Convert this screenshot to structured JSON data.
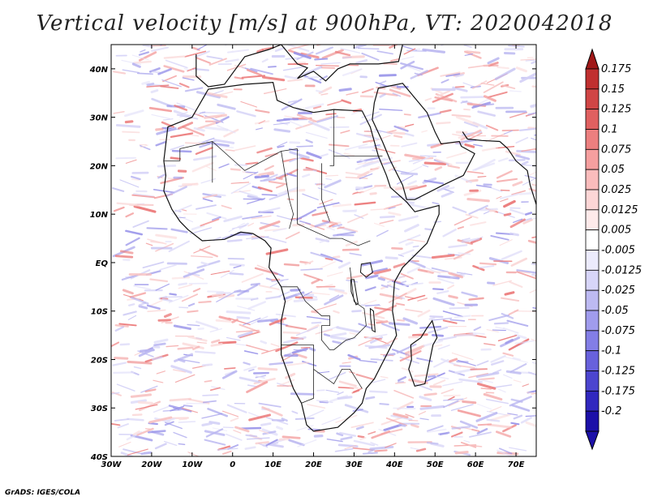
{
  "title": "Vertical velocity [m/s] at 900hPa, VT: 2020042018",
  "credit": "GrADS: IGES/COLA",
  "chart_data": {
    "type": "heatmap",
    "variable": "Vertical velocity",
    "units": "m/s",
    "level": "900hPa",
    "valid_time": "2020042018",
    "lon_range": [
      -30,
      75
    ],
    "lat_range": [
      -40,
      45
    ],
    "x_ticks": [
      {
        "value": -30,
        "label": "30W"
      },
      {
        "value": -20,
        "label": "20W"
      },
      {
        "value": -10,
        "label": "10W"
      },
      {
        "value": 0,
        "label": "0"
      },
      {
        "value": 10,
        "label": "10E"
      },
      {
        "value": 20,
        "label": "20E"
      },
      {
        "value": 30,
        "label": "30E"
      },
      {
        "value": 40,
        "label": "40E"
      },
      {
        "value": 50,
        "label": "50E"
      },
      {
        "value": 60,
        "label": "60E"
      },
      {
        "value": 70,
        "label": "70E"
      }
    ],
    "y_ticks": [
      {
        "value": 40,
        "label": "40N"
      },
      {
        "value": 30,
        "label": "30N"
      },
      {
        "value": 20,
        "label": "20N"
      },
      {
        "value": 10,
        "label": "10N"
      },
      {
        "value": 0,
        "label": "EQ"
      },
      {
        "value": -10,
        "label": "10S"
      },
      {
        "value": -20,
        "label": "20S"
      },
      {
        "value": -30,
        "label": "30S"
      },
      {
        "value": -40,
        "label": "40S"
      }
    ],
    "colorbar": {
      "levels": [
        {
          "label": "0.175",
          "color": "#c03030"
        },
        {
          "label": "0.15",
          "color": "#d04545"
        },
        {
          "label": "0.125",
          "color": "#e06060"
        },
        {
          "label": "0.1",
          "color": "#ec7f7f"
        },
        {
          "label": "0.075",
          "color": "#f59f9f"
        },
        {
          "label": "0.05",
          "color": "#fabcbc"
        },
        {
          "label": "0.025",
          "color": "#fdd6d6"
        },
        {
          "label": "0.0125",
          "color": "#feeaea"
        },
        {
          "label": "0.005",
          "color": "#ffffff"
        },
        {
          "label": "-0.005",
          "color": "#ecebfc"
        },
        {
          "label": "-0.0125",
          "color": "#d7d5f8"
        },
        {
          "label": "-0.025",
          "color": "#bdbaf2"
        },
        {
          "label": "-0.05",
          "color": "#a09ced"
        },
        {
          "label": "-0.075",
          "color": "#837ee6"
        },
        {
          "label": "-0.1",
          "color": "#6861dc"
        },
        {
          "label": "-0.125",
          "color": "#4c45cf"
        },
        {
          "label": "-0.175",
          "color": "#3128bf"
        },
        {
          "label": "-0.2",
          "color": "#1c10a8"
        }
      ],
      "top_arrow_color": "#a01818",
      "bottom_arrow_color": "#1c10a8"
    }
  }
}
